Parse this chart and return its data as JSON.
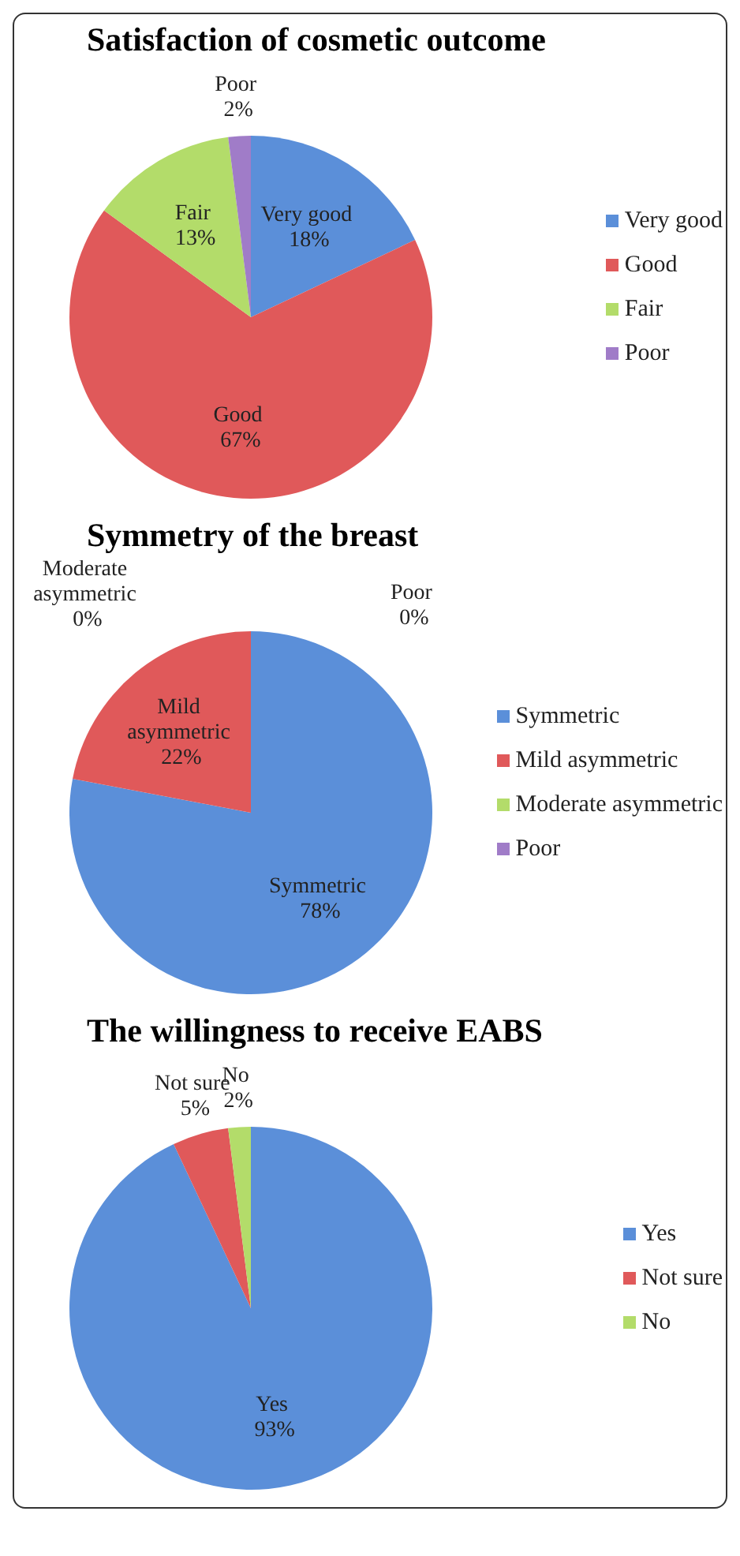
{
  "chart_data": [
    {
      "type": "pie",
      "title": "Satisfaction of cosmetic outcome",
      "categories": [
        "Very good",
        "Good",
        "Fair",
        "Poor"
      ],
      "values": [
        18,
        67,
        13,
        2
      ],
      "colors": [
        "#5b8fd9",
        "#e0595a",
        "#b3dc6a",
        "#a07cc8"
      ],
      "data_labels": true,
      "value_labels": [
        "18%",
        "67%",
        "13%",
        "2%"
      ],
      "legend": "right"
    },
    {
      "type": "pie",
      "title": "Symmetry of the breast",
      "categories": [
        "Symmetric",
        "Mild asymmetric",
        "Moderate asymmetric",
        "Poor"
      ],
      "values": [
        78,
        22,
        0,
        0
      ],
      "colors": [
        "#5b8fd9",
        "#e0595a",
        "#b3dc6a",
        "#a07cc8"
      ],
      "data_labels": true,
      "value_labels": [
        "78%",
        "22%",
        "0%",
        "0%"
      ],
      "legend": "right"
    },
    {
      "type": "pie",
      "title": "The willingness to receive EABS",
      "categories": [
        "Yes",
        "Not sure",
        "No"
      ],
      "values": [
        93,
        5,
        2
      ],
      "colors": [
        "#5b8fd9",
        "#e0595a",
        "#b3dc6a"
      ],
      "data_labels": true,
      "value_labels": [
        "93%",
        "5%",
        "2%"
      ],
      "legend": "right"
    }
  ]
}
